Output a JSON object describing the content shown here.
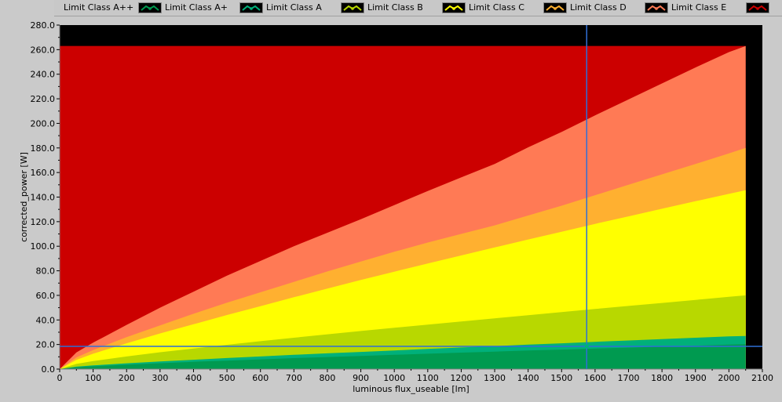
{
  "legend": {
    "items": [
      {
        "label": "Limit Class A++",
        "color": "#009a50"
      },
      {
        "label": "Limit Class A+",
        "color": "#00b07a"
      },
      {
        "label": "Limit Class A",
        "color": "#b8d800"
      },
      {
        "label": "Limit Class B",
        "color": "#ffff00"
      },
      {
        "label": "Limit Class C",
        "color": "#ffb030"
      },
      {
        "label": "Limit Class D",
        "color": "#ff7a55"
      },
      {
        "label": "Limit Class E",
        "color": "#cc0000"
      }
    ]
  },
  "chart_data": {
    "type": "area",
    "xlabel": "luminous flux_useable [lm]",
    "ylabel": "corrected_power [W]",
    "xlim": [
      0,
      2100
    ],
    "ylim": [
      0,
      280
    ],
    "x_ticks": [
      "0",
      "100",
      "200",
      "300",
      "400",
      "500",
      "600",
      "700",
      "800",
      "900",
      "1000",
      "1100",
      "1200",
      "1300",
      "1400",
      "1500",
      "1600",
      "1700",
      "1800",
      "1900",
      "2000",
      "2100"
    ],
    "y_ticks": [
      "0.0",
      "20.0",
      "40.0",
      "60.0",
      "80.0",
      "100.0",
      "120.0",
      "140.0",
      "160.0",
      "180.0",
      "200.0",
      "220.0",
      "240.0",
      "260.0",
      "280.0"
    ],
    "plot_background": "#000000",
    "fill_color_top": "#cc0000",
    "region_top": 263,
    "x_max_data": 2050,
    "x": [
      0,
      50,
      100,
      200,
      300,
      400,
      500,
      600,
      700,
      800,
      900,
      1000,
      1100,
      1200,
      1300,
      1400,
      1500,
      1600,
      1700,
      1800,
      1900,
      2000,
      2050
    ],
    "series": [
      {
        "name": "Limit Class A++",
        "color": "#009a50",
        "values": [
          0,
          1.5,
          2.3,
          3.6,
          4.8,
          5.9,
          6.9,
          7.9,
          8.9,
          9.8,
          10.7,
          11.6,
          12.5,
          13.4,
          14.2,
          15.1,
          15.9,
          16.7,
          17.5,
          18.3,
          19.1,
          19.9,
          20.3
        ]
      },
      {
        "name": "Limit Class A+",
        "color": "#00b07a",
        "values": [
          0,
          2.0,
          3.0,
          4.7,
          6.2,
          7.6,
          9.0,
          10.3,
          11.6,
          12.8,
          14.0,
          15.2,
          16.4,
          17.6,
          18.7,
          19.9,
          21.0,
          22.2,
          23.3,
          24.4,
          25.5,
          26.6,
          27.0
        ]
      },
      {
        "name": "Limit Class A",
        "color": "#b8d800",
        "values": [
          0,
          4.2,
          6.5,
          10.3,
          13.7,
          16.8,
          19.8,
          22.7,
          25.5,
          28.3,
          31.0,
          33.6,
          36.2,
          38.8,
          41.3,
          43.9,
          46.4,
          48.9,
          51.4,
          53.8,
          56.3,
          58.8,
          60.0
        ]
      },
      {
        "name": "Limit Class B",
        "color": "#ffff00",
        "values": [
          0,
          7.5,
          12.5,
          21.0,
          29.0,
          36.5,
          44.0,
          51.2,
          58.5,
          65.5,
          72.5,
          79.3,
          86.0,
          92.5,
          99.0,
          105.5,
          111.8,
          118.2,
          124.3,
          130.5,
          136.6,
          142.6,
          145.6
        ]
      },
      {
        "name": "Limit Class C",
        "color": "#ffb030",
        "values": [
          0,
          9.5,
          15.5,
          26.0,
          35.5,
          45.0,
          54.0,
          62.5,
          71.0,
          79.5,
          87.5,
          95.5,
          103.0,
          110.0,
          117.0,
          125.0,
          133.0,
          141.5,
          150.0,
          158.5,
          167.0,
          175.5,
          180.0
        ]
      },
      {
        "name": "Limit Class D",
        "color": "#ff7a55",
        "values": [
          0,
          13.5,
          21.5,
          36.0,
          50.0,
          63.0,
          76.0,
          88.0,
          100.0,
          111.0,
          122.0,
          133.5,
          145.0,
          156.0,
          167.0,
          180.5,
          193.0,
          206.5,
          219.5,
          232.5,
          245.5,
          258.0,
          264.0
        ]
      }
    ],
    "cursor": {
      "x": 1575,
      "y": 18.5,
      "color": "#2f6fd6",
      "marker_color": "#00b07a"
    }
  }
}
